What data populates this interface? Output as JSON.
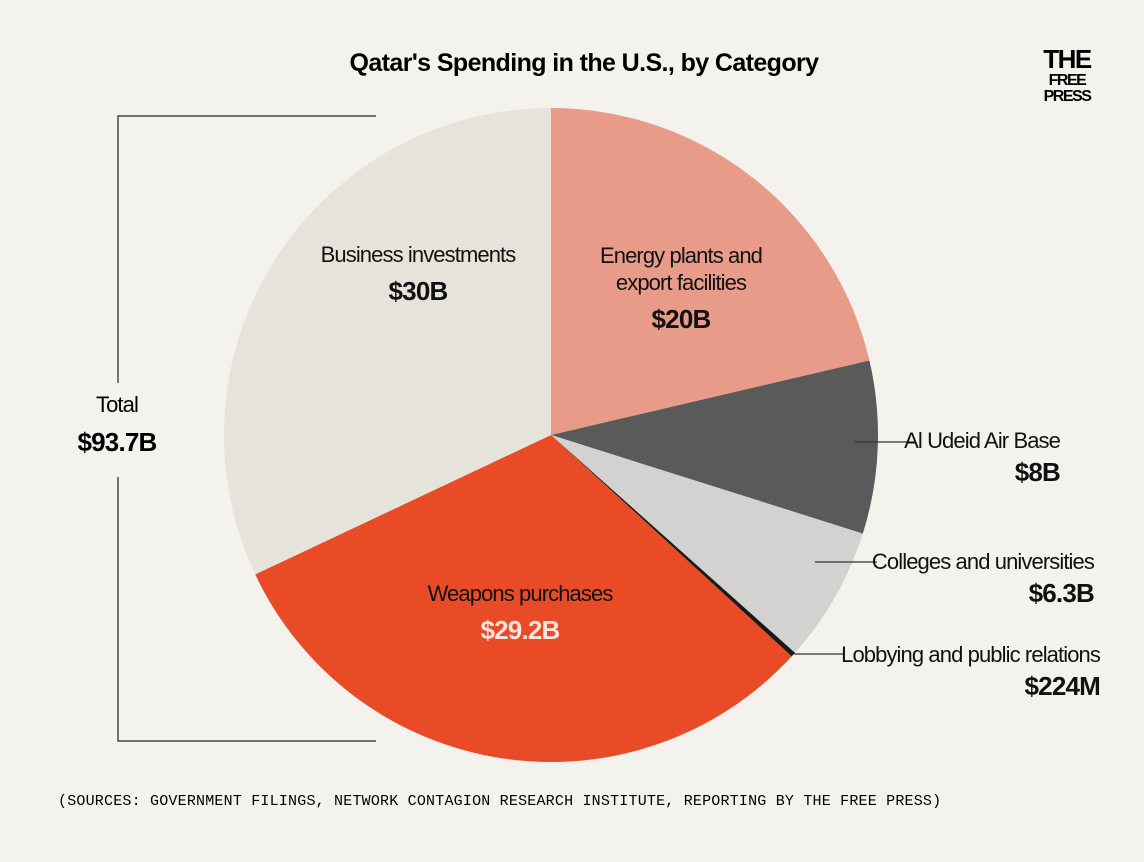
{
  "chart_data": {
    "type": "pie",
    "title": "Qatar's Spending in the U.S., by Category",
    "total_label": "Total",
    "total_value": "$93.7B",
    "slices": [
      {
        "name": "Energy plants and export facilities",
        "label_lines": [
          "Energy plants and",
          "export facilities"
        ],
        "value": 20.0,
        "value_label": "$20B",
        "color": "#e89b88"
      },
      {
        "name": "Al Udeid Air Base",
        "label_lines": [
          "Al Udeid Air Base"
        ],
        "value": 8.0,
        "value_label": "$8B",
        "color": "#5a5a5a"
      },
      {
        "name": "Colleges and universities",
        "label_lines": [
          "Colleges and universities"
        ],
        "value": 6.3,
        "value_label": "$6.3B",
        "color": "#d3d2d0"
      },
      {
        "name": "Lobbying and public relations",
        "label_lines": [
          "Lobbying and public relations"
        ],
        "value": 0.224,
        "value_label": "$224M",
        "color": "#1a1a1a"
      },
      {
        "name": "Weapons purchases",
        "label_lines": [
          "Weapons purchases"
        ],
        "value": 29.2,
        "value_label": "$29.2B",
        "color": "#e84b26"
      },
      {
        "name": "Business investments",
        "label_lines": [
          "Business investments"
        ],
        "value": 30.0,
        "value_label": "$30B",
        "color": "#e6e4da"
      }
    ]
  },
  "brand": {
    "line1": "THE",
    "line2": "FREE",
    "line3": "PRESS"
  },
  "source": "(SOURCES: GOVERNMENT FILINGS, NETWORK CONTAGION RESEARCH INSTITUTE, REPORTING BY THE FREE PRESS)",
  "colors": {
    "background": "#f4f2ed",
    "text": "#111111",
    "weapons_value": "#fbe5dc"
  }
}
